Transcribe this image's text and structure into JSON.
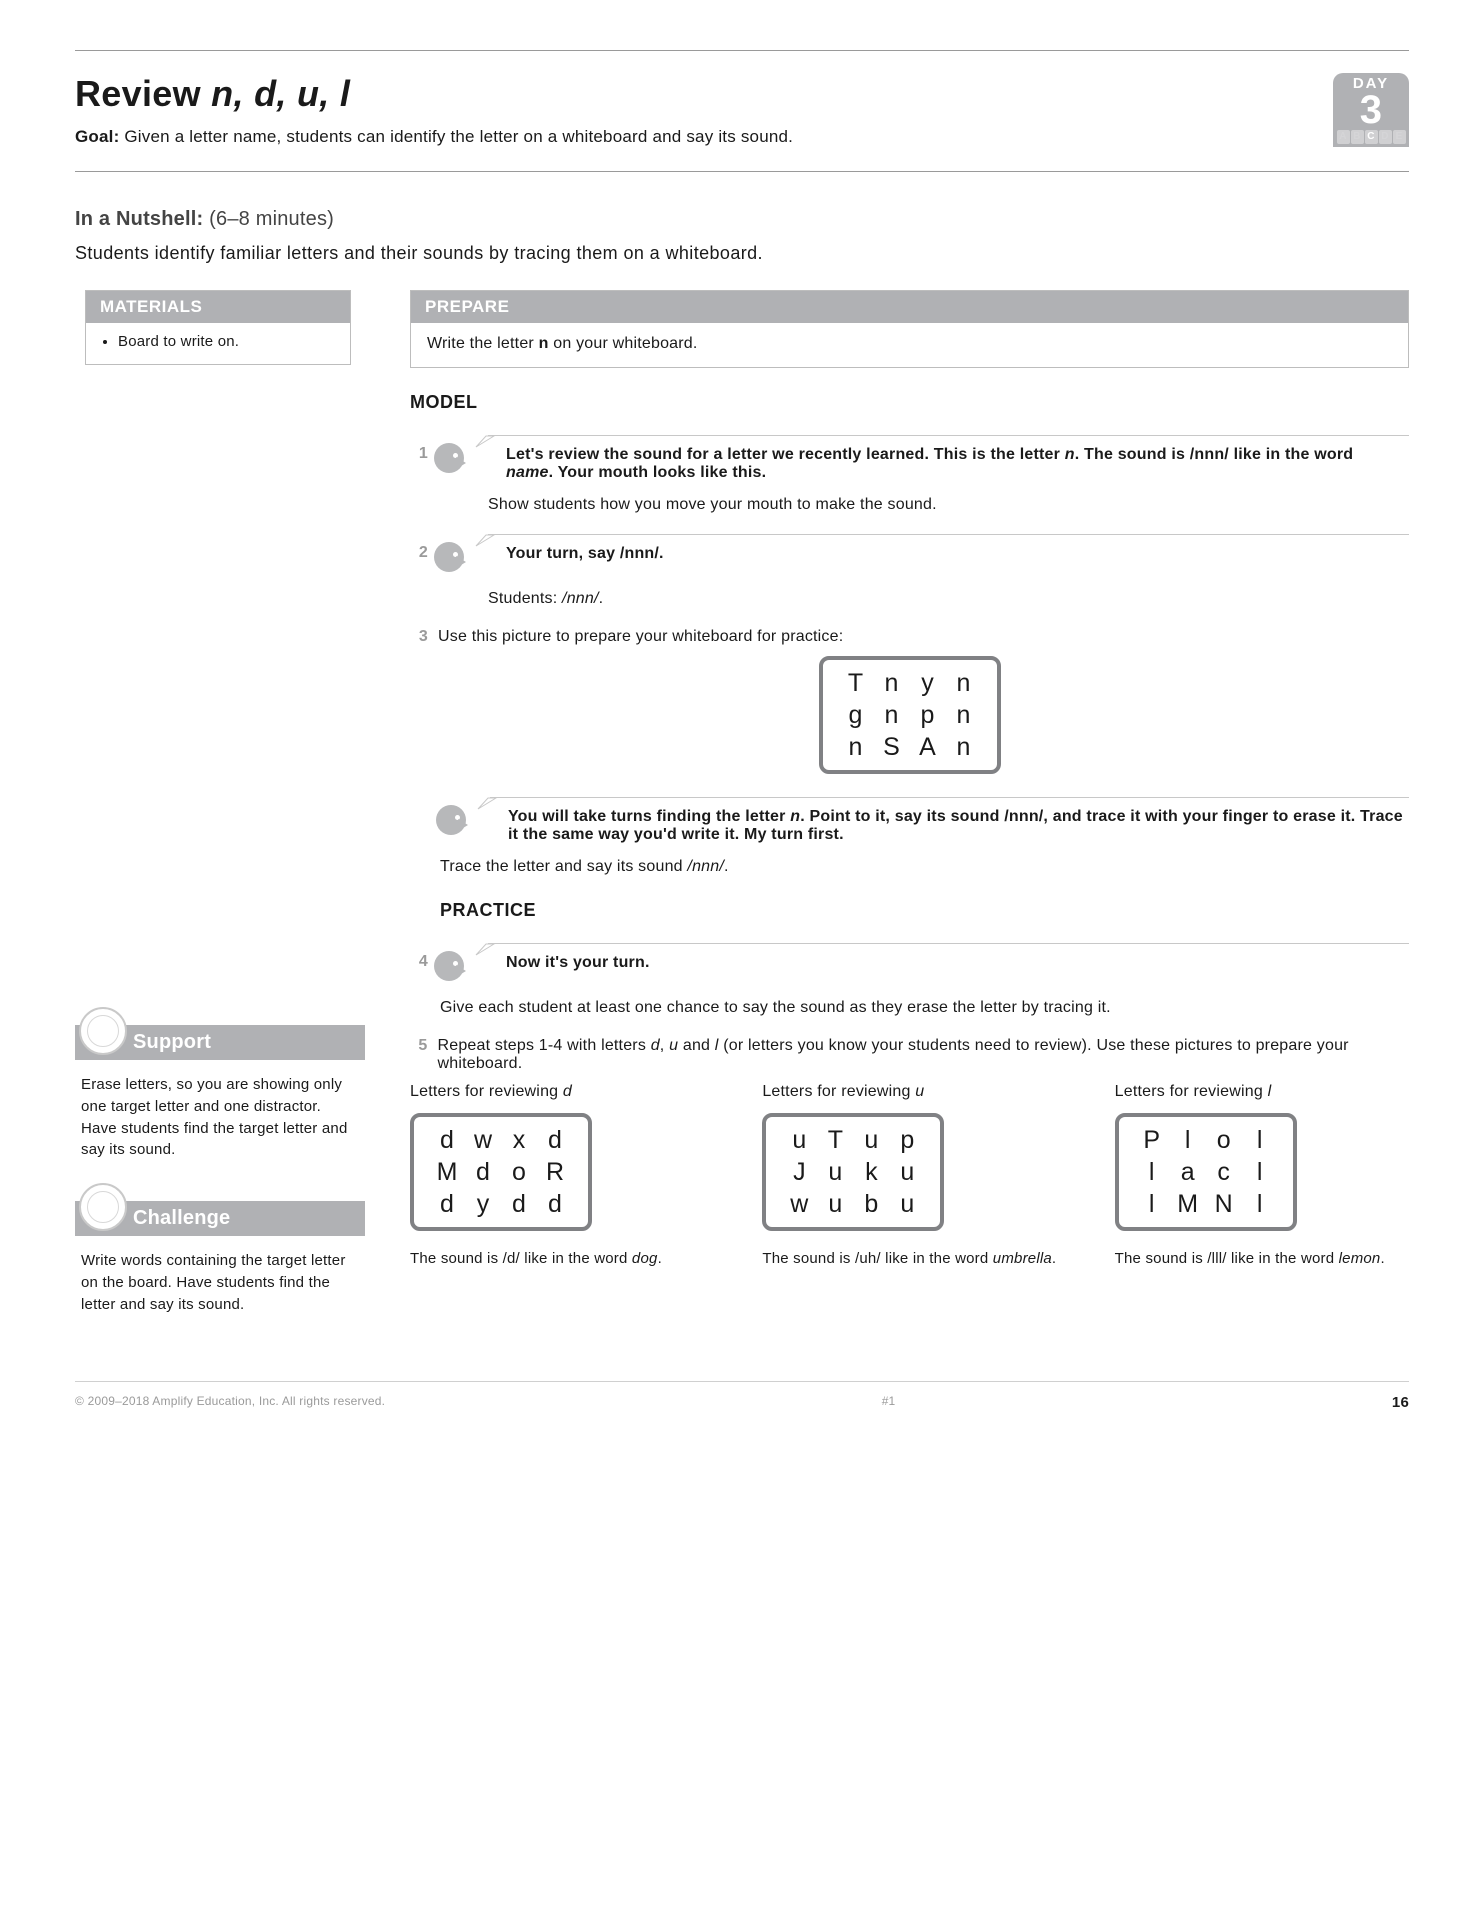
{
  "header": {
    "title_prefix": "Review ",
    "title_italic": "n, d, u, l",
    "goal_label": "Goal:",
    "goal_text": " Given a letter name, students can identify the letter on a whiteboard and say its sound.",
    "day_label": "DAY",
    "day_number": "3",
    "abcde": [
      "A",
      "B",
      "C",
      "D",
      "E"
    ],
    "abcde_highlight_index": 2
  },
  "nutshell": {
    "label": "In a Nutshell:",
    "mins": " (6–8 minutes)",
    "desc": "Students identify familiar letters and their sounds by tracing them on a whiteboard."
  },
  "materials": {
    "heading": "MATERIALS",
    "items": [
      "Board to write on."
    ]
  },
  "prepare": {
    "heading": "PREPARE",
    "text_before": "Write the letter ",
    "letter": "n",
    "text_after": " on your whiteboard."
  },
  "model": {
    "heading": "MODEL",
    "step1_bubble": "Let's review the sound for a letter we recently learned. This is the letter n. The sound is /nnn/ like in the word name. Your mouth looks like this.",
    "step1_after": "Show students how you move your mouth to make the sound.",
    "step2_bubble": "Your turn, say /nnn/.",
    "step2_after": "Students: /nnn/.",
    "step3_text": "Use this picture to prepare your whiteboard for practice:",
    "grid_n": [
      [
        "T",
        "n",
        "y",
        "n"
      ],
      [
        "g",
        "n",
        "p",
        "n"
      ],
      [
        "n",
        "S",
        "A",
        "n"
      ]
    ],
    "step3_bubble": "You will take turns finding the letter n. Point to it, say its sound /nnn/, and trace it with your finger to erase it. Trace it the same way you'd write it. My turn first.",
    "step3_after": "Trace the letter and say its sound /nnn/."
  },
  "practice": {
    "heading": "PRACTICE",
    "step4_bubble": "Now it's your turn.",
    "step4_after": "Give each student at least one chance to say the sound as they erase the letter by tracing it.",
    "step5_text": "Repeat steps 1-4 with letters d, u and l (or letters you know your students need to review). Use these pictures to prepare your whiteboard.",
    "grids": [
      {
        "title": "Letters for reviewing d",
        "rows": [
          [
            "d",
            "w",
            "x",
            "d"
          ],
          [
            "M",
            "d",
            "o",
            "R"
          ],
          [
            "d",
            "y",
            "d",
            "d"
          ]
        ],
        "sound": "The sound is /d/ like in the word dog."
      },
      {
        "title": "Letters for reviewing u",
        "rows": [
          [
            "u",
            "T",
            "u",
            "p"
          ],
          [
            "J",
            "u",
            "k",
            "u"
          ],
          [
            "w",
            "u",
            "b",
            "u"
          ]
        ],
        "sound": "The sound is /uh/ like in the word umbrella."
      },
      {
        "title": "Letters for reviewing l",
        "rows": [
          [
            "P",
            "l",
            "o",
            "l"
          ],
          [
            "l",
            "a",
            "c",
            "l"
          ],
          [
            "l",
            "M",
            "N",
            "l"
          ]
        ],
        "sound": "The sound is /lll/ like in the word lemon."
      }
    ]
  },
  "support": {
    "heading": "Support",
    "body": "Erase letters, so you are showing only one target letter and one distractor. Have students find the target letter and say its sound."
  },
  "challenge": {
    "heading": "Challenge",
    "body": "Write words containing the target letter on the board. Have students find the letter and say its sound."
  },
  "footer": {
    "copyright": "© 2009–2018 Amplify Education, Inc. All rights reserved.",
    "center": "#1",
    "page": "16"
  },
  "colors": {
    "gray_bar": "#b0b1b4",
    "border_gray": "#bdbdbd",
    "rule_gray": "#9a9a9a",
    "grid_border": "#808184"
  }
}
